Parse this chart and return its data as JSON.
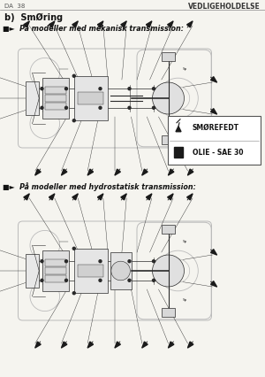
{
  "header_left": "DA  38",
  "header_right": "VEDLIGEHOLDELSE",
  "title_b": "b)  SmØring",
  "section1": "■►  På modeller med mekanisk transmission:",
  "section2": "■►  På modeller med hydrostatisk transmission:",
  "legend_item1": "SMØREFEDT",
  "legend_item2": "OLIE - SAE 30",
  "bg_color": "#f5f4ef",
  "line_color": "#1a1a1a",
  "diagram_gray": "#cccccc",
  "diagram_mid": "#999999"
}
